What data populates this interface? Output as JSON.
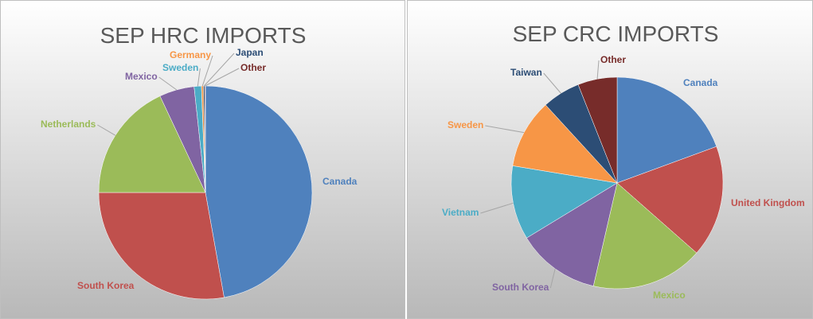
{
  "chart_data": [
    {
      "type": "pie",
      "title": "SEP HRC IMPORTS",
      "categories": [
        "Canada",
        "South Korea",
        "Netherlands",
        "Mexico",
        "Sweden",
        "Germany",
        "Japan",
        "Other"
      ],
      "values": [
        47.2,
        27.8,
        18,
        5.3,
        1.1,
        0.3,
        0.2,
        0.1
      ],
      "colors": [
        "#4f81bd",
        "#c0504d",
        "#9bbb59",
        "#8064a2",
        "#4bacc6",
        "#f79646",
        "#2c4d75",
        "#772c2a"
      ]
    },
    {
      "type": "pie",
      "title": "SEP CRC IMPORTS",
      "categories": [
        "Canada",
        "United Kingdom",
        "Mexico",
        "South Korea",
        "Vietnam",
        "Sweden",
        "Taiwan",
        "Other"
      ],
      "values": [
        19.4,
        17.1,
        17.1,
        12.7,
        11.3,
        10.6,
        5.8,
        6.0
      ],
      "colors": [
        "#4f81bd",
        "#c0504d",
        "#9bbb59",
        "#8064a2",
        "#4bacc6",
        "#f79646",
        "#2c4d75",
        "#772c2a"
      ]
    }
  ]
}
